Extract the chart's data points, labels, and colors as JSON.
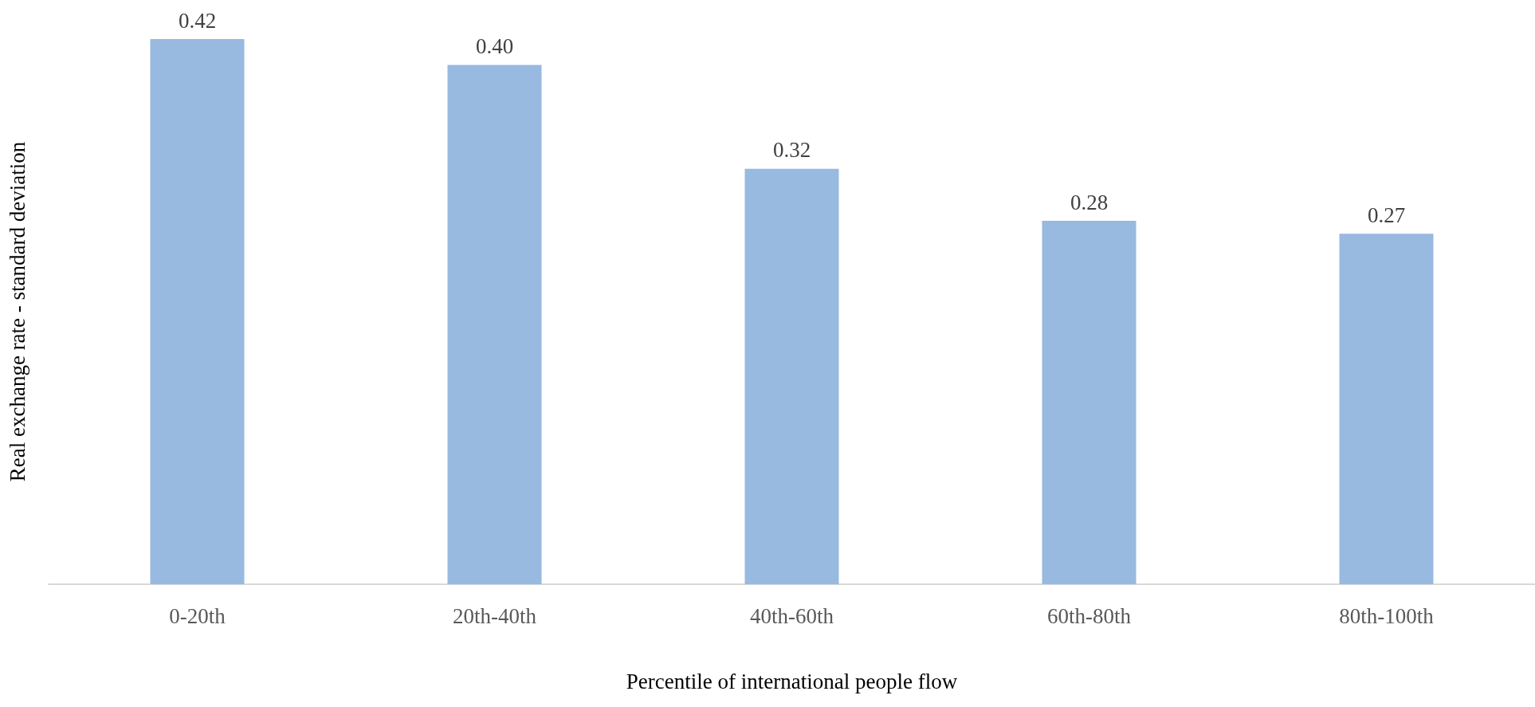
{
  "chart_data": {
    "type": "bar",
    "xlabel": "Percentile of international people flow",
    "ylabel": "Real exchange rate - standard deviation",
    "categories": [
      "0-20th",
      "20th-40th",
      "40th-60th",
      "60th-80th",
      "80th-100th"
    ],
    "values": [
      0.42,
      0.4,
      0.32,
      0.28,
      0.27
    ],
    "color": "#98b9e0",
    "tick_labels": "x",
    "value_labels": [
      "0.42",
      "0.40",
      "0.32",
      "0.28",
      "0.27"
    ]
  }
}
